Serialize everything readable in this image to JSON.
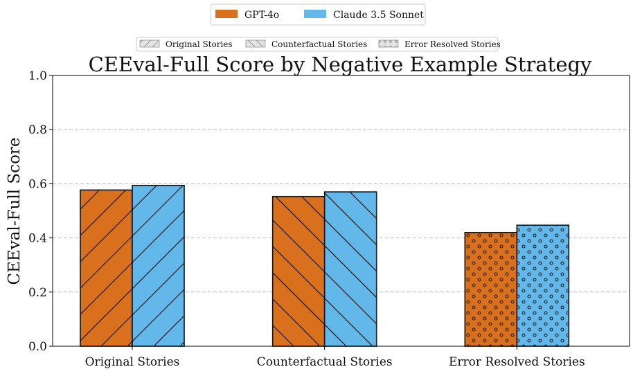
{
  "chart_data": {
    "type": "bar",
    "title": "CEEval-Full Score by Negative Example Strategy",
    "xlabel": "",
    "ylabel": "CEEval-Full Score",
    "ylim": [
      0,
      1.0
    ],
    "yticks": [
      "0.0",
      "0.2",
      "0.4",
      "0.6",
      "0.8",
      "1.0"
    ],
    "grid": "horizontal dashed",
    "categories": [
      "Original Stories",
      "Counterfactual Stories",
      "Error Resolved Stories"
    ],
    "series": [
      {
        "name": "GPT-4o",
        "color": "#D9701D",
        "values": [
          0.577,
          0.553,
          0.42
        ]
      },
      {
        "name": "Claude 3.5 Sonnet",
        "color": "#63B8EA",
        "values": [
          0.594,
          0.57,
          0.447
        ]
      }
    ],
    "patterns": [
      "forward-diagonal",
      "back-diagonal",
      "dots"
    ],
    "legend_models": [
      "GPT-4o",
      "Claude 3.5 Sonnet"
    ],
    "legend_strategies": [
      "Original Stories",
      "Counterfactual Stories",
      "Error Resolved Stories"
    ],
    "legend_placement": "top-center"
  }
}
